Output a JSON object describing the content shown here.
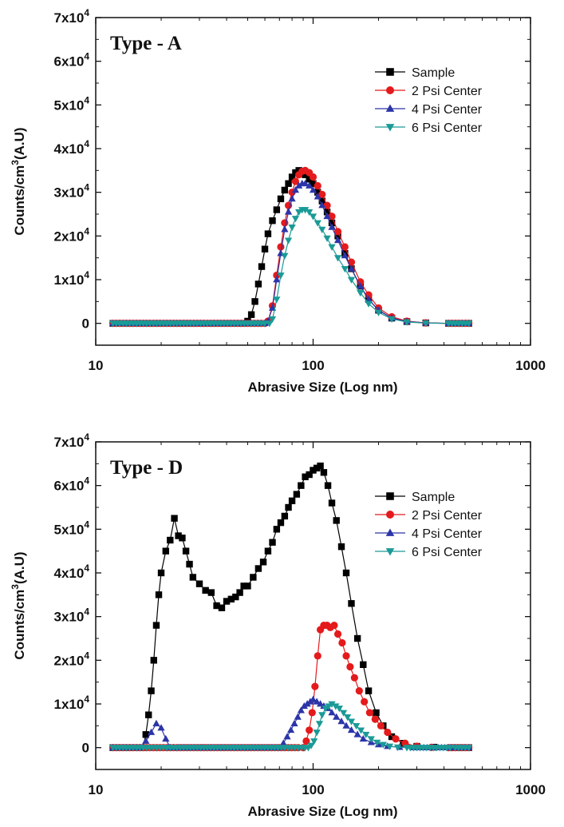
{
  "chart_data": [
    {
      "type": "line",
      "title": "Type - A",
      "xlabel": "Abrasive Size (Log nm)",
      "ylabel": "Counts/cm3(A.U)",
      "xscale": "log",
      "xlim": [
        10,
        1000
      ],
      "ylim": [
        -5000,
        70000
      ],
      "xticks": [
        10,
        100,
        1000
      ],
      "xtick_labels": [
        "10",
        "100",
        "1000"
      ],
      "yticks": [
        0,
        10000,
        20000,
        30000,
        40000,
        50000,
        60000,
        70000
      ],
      "ytick_labels": [
        {
          "base": "0",
          "exp": ""
        },
        {
          "base": "1x10",
          "exp": "4"
        },
        {
          "base": "2x10",
          "exp": "4"
        },
        {
          "base": "3x10",
          "exp": "4"
        },
        {
          "base": "4x10",
          "exp": "4"
        },
        {
          "base": "5x10",
          "exp": "4"
        },
        {
          "base": "6x10",
          "exp": "4"
        },
        {
          "base": "7x10",
          "exp": "4"
        }
      ],
      "grid": false,
      "legend_position": "top-right",
      "series": [
        {
          "name": "Sample",
          "color": "#000000",
          "marker": "square",
          "x": [
            12,
            48,
            50,
            52,
            54,
            56,
            58,
            60,
            62,
            65,
            68,
            71,
            74,
            77,
            80,
            83,
            86,
            89,
            92,
            96,
            100,
            105,
            110,
            116,
            122,
            130,
            140,
            150,
            165,
            180,
            200,
            230,
            270,
            330,
            420,
            520
          ],
          "y": [
            0,
            0,
            500,
            2000,
            5000,
            9000,
            13000,
            17000,
            20500,
            23500,
            26000,
            28500,
            30500,
            32000,
            33500,
            34500,
            35000,
            34500,
            34000,
            33000,
            32000,
            30000,
            28000,
            25500,
            23000,
            20000,
            16000,
            12500,
            8500,
            5500,
            3000,
            1200,
            400,
            100,
            0,
            0
          ]
        },
        {
          "name": "2 Psi Center",
          "color": "#e41a1c",
          "marker": "circle",
          "x": [
            12,
            60,
            62,
            65,
            68,
            71,
            74,
            77,
            80,
            83,
            86,
            89,
            92,
            96,
            100,
            105,
            110,
            116,
            122,
            130,
            140,
            150,
            165,
            180,
            200,
            230,
            270,
            330,
            420,
            520
          ],
          "y": [
            0,
            0,
            500,
            4000,
            11000,
            17500,
            23000,
            27000,
            30000,
            32500,
            34000,
            34800,
            35000,
            34500,
            33500,
            31500,
            29500,
            27000,
            24500,
            21000,
            17500,
            14000,
            9500,
            6500,
            3500,
            1500,
            500,
            100,
            0,
            0
          ]
        },
        {
          "name": "4 Psi Center",
          "color": "#2c35a8",
          "marker": "triangle-up",
          "x": [
            12,
            60,
            62,
            65,
            68,
            71,
            74,
            77,
            80,
            83,
            86,
            89,
            92,
            96,
            100,
            105,
            110,
            116,
            122,
            130,
            140,
            150,
            165,
            180,
            200,
            230,
            270,
            330,
            420,
            520
          ],
          "y": [
            0,
            0,
            500,
            3500,
            10000,
            16000,
            21500,
            25500,
            28500,
            30500,
            31500,
            32000,
            32000,
            31500,
            30500,
            29000,
            27000,
            24500,
            22000,
            19000,
            15500,
            12500,
            8500,
            5500,
            3000,
            1200,
            400,
            100,
            0,
            0
          ]
        },
        {
          "name": "6 Psi Center",
          "color": "#1a9a96",
          "marker": "triangle-down",
          "x": [
            12,
            63,
            65,
            68,
            71,
            74,
            77,
            80,
            83,
            86,
            89,
            92,
            96,
            100,
            105,
            110,
            116,
            122,
            130,
            140,
            150,
            165,
            180,
            200,
            230,
            270,
            330,
            420,
            520
          ],
          "y": [
            0,
            0,
            1000,
            5500,
            11000,
            15500,
            19000,
            22000,
            24000,
            25500,
            26000,
            26000,
            25500,
            24500,
            23000,
            21500,
            19500,
            17500,
            15000,
            12500,
            10000,
            7000,
            4500,
            2500,
            1000,
            300,
            50,
            0,
            0
          ]
        }
      ]
    },
    {
      "type": "line",
      "title": "Type - D",
      "xlabel": "Abrasive Size (Log nm)",
      "ylabel": "Counts/cm3(A.U)",
      "xscale": "log",
      "xlim": [
        10,
        1000
      ],
      "ylim": [
        -5000,
        70000
      ],
      "xticks": [
        10,
        100,
        1000
      ],
      "xtick_labels": [
        "10",
        "100",
        "1000"
      ],
      "yticks": [
        0,
        10000,
        20000,
        30000,
        40000,
        50000,
        60000,
        70000
      ],
      "ytick_labels": [
        {
          "base": "0",
          "exp": ""
        },
        {
          "base": "1x10",
          "exp": "4"
        },
        {
          "base": "2x10",
          "exp": "4"
        },
        {
          "base": "3x10",
          "exp": "4"
        },
        {
          "base": "4x10",
          "exp": "4"
        },
        {
          "base": "5x10",
          "exp": "4"
        },
        {
          "base": "6x10",
          "exp": "4"
        },
        {
          "base": "7x10",
          "exp": "4"
        }
      ],
      "grid": false,
      "legend_position": "top-right",
      "series": [
        {
          "name": "Sample",
          "color": "#000000",
          "marker": "square",
          "x": [
            12,
            16.5,
            17,
            17.5,
            18,
            18.5,
            19,
            19.5,
            20,
            21,
            22,
            23,
            24,
            25,
            26,
            27,
            28,
            30,
            32,
            34,
            36,
            38,
            40,
            42,
            44,
            46,
            48,
            50,
            53,
            56,
            59,
            62,
            65,
            68,
            71,
            74,
            77,
            80,
            84,
            88,
            92,
            96,
            100,
            104,
            108,
            112,
            117,
            122,
            128,
            135,
            142,
            150,
            160,
            170,
            180,
            195,
            210,
            230,
            260,
            300,
            360,
            430,
            520
          ],
          "y": [
            0,
            0,
            3000,
            7500,
            13000,
            20000,
            28000,
            35000,
            40000,
            45000,
            47500,
            52500,
            48500,
            48000,
            45000,
            42000,
            39000,
            37500,
            36000,
            35500,
            32500,
            32000,
            33500,
            34000,
            34500,
            35500,
            37000,
            37000,
            39000,
            41000,
            42500,
            45000,
            47000,
            50000,
            51500,
            53000,
            55000,
            56500,
            58000,
            60000,
            62000,
            62500,
            63500,
            64000,
            64500,
            63000,
            60000,
            56000,
            52000,
            46000,
            40000,
            33000,
            25000,
            19000,
            13000,
            8000,
            5000,
            2500,
            1000,
            300,
            100,
            0,
            0
          ]
        },
        {
          "name": "2 Psi Center",
          "color": "#e41a1c",
          "marker": "circle",
          "x": [
            12,
            90,
            93,
            96,
            99,
            102,
            105,
            108,
            112,
            116,
            120,
            125,
            130,
            136,
            142,
            148,
            155,
            163,
            172,
            182,
            193,
            205,
            220,
            240,
            265,
            300,
            350,
            420,
            520
          ],
          "y": [
            0,
            0,
            1500,
            4000,
            8000,
            14000,
            21000,
            27000,
            28000,
            28000,
            27500,
            28000,
            26000,
            24000,
            21000,
            18500,
            16000,
            13000,
            10500,
            8000,
            6500,
            5000,
            3500,
            2000,
            1000,
            300,
            50,
            0,
            0
          ]
        },
        {
          "name": "4 Psi Center",
          "color": "#2c35a8",
          "marker": "triangle-up",
          "x": [
            12,
            16,
            17,
            18,
            19,
            20,
            21,
            22,
            24,
            70,
            73,
            76,
            79,
            82,
            85,
            88,
            91,
            94,
            97,
            100,
            104,
            108,
            112,
            117,
            122,
            128,
            135,
            142,
            150,
            160,
            170,
            185,
            200,
            220,
            250,
            290,
            350,
            430,
            520
          ],
          "y": [
            0,
            0,
            1500,
            3500,
            5500,
            4500,
            2000,
            0,
            0,
            0,
            1000,
            2500,
            4000,
            5500,
            7000,
            8500,
            9500,
            10000,
            10500,
            11000,
            10500,
            10000,
            9500,
            9000,
            8000,
            7000,
            6000,
            5000,
            4000,
            3000,
            2000,
            1200,
            700,
            300,
            100,
            0,
            0,
            0,
            0
          ]
        },
        {
          "name": "6 Psi Center",
          "color": "#1a9a96",
          "marker": "triangle-down",
          "x": [
            12,
            95,
            98,
            101,
            104,
            107,
            110,
            114,
            118,
            122,
            127,
            132,
            138,
            144,
            150,
            158,
            166,
            175,
            185,
            197,
            210,
            225,
            245,
            270,
            310,
            370,
            450,
            520
          ],
          "y": [
            0,
            0,
            500,
            1500,
            3500,
            5500,
            7500,
            9000,
            9500,
            10000,
            9500,
            9000,
            8000,
            7000,
            6000,
            5000,
            4000,
            3000,
            2000,
            1200,
            700,
            300,
            100,
            0,
            0,
            0,
            0,
            0
          ]
        }
      ]
    }
  ]
}
